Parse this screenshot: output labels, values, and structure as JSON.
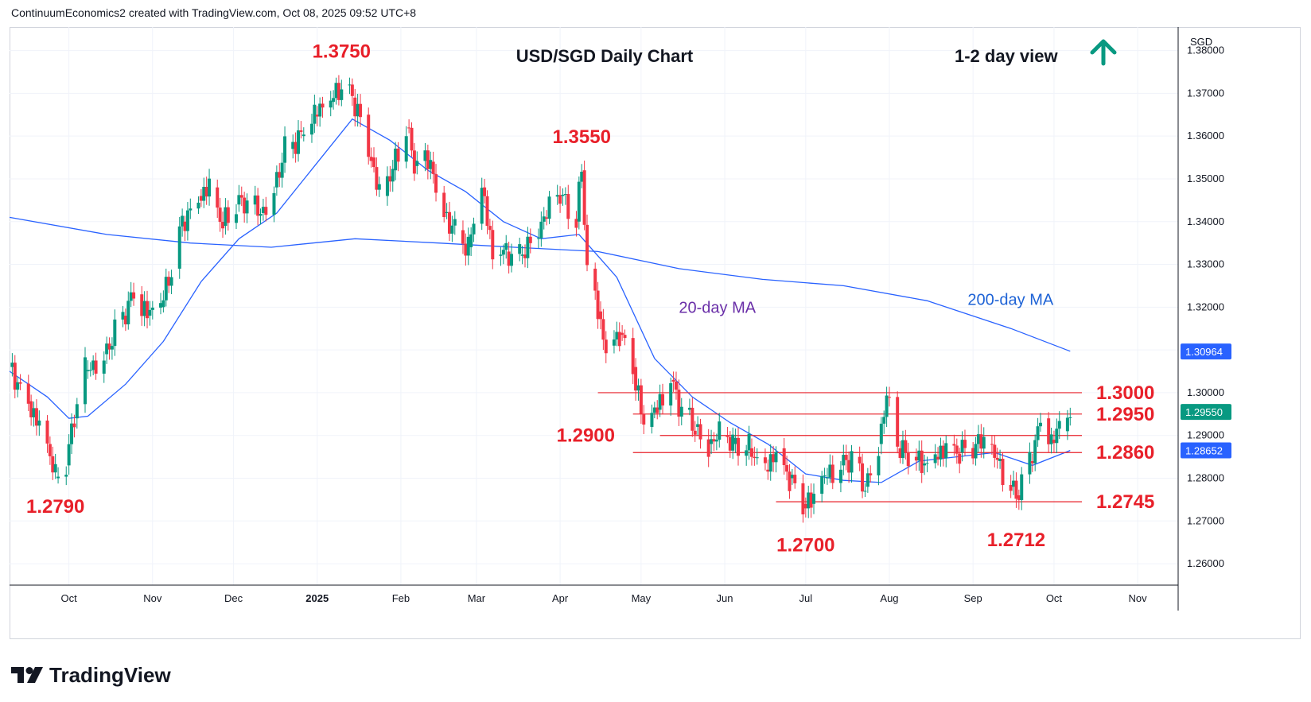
{
  "header": {
    "created_by": "ContinuumEconomics2 created with TradingView.com, Oct 08, 2025 09:52 UTC+8"
  },
  "brand": {
    "name": "TradingView"
  },
  "currency_label": "SGD",
  "colors": {
    "up": "#089981",
    "down": "#f23645",
    "ma20": "#2962ff",
    "ma200": "#2962ff",
    "level_line": "#e8202a",
    "level_text": "#e8202a",
    "arrow": "#089981",
    "ma20_label": "#6a2fa8",
    "ma200_label": "#1e63d6"
  },
  "chart_data": {
    "type": "candlestick",
    "title": "USD/SGD Daily Chart",
    "view_label": "1-2 day view",
    "view_direction": "up-arrow-icon",
    "ylim": [
      1.255,
      1.3855
    ],
    "y_ticks": [
      "1.38000",
      "1.37000",
      "1.36000",
      "1.35000",
      "1.34000",
      "1.33000",
      "1.32000",
      "1.31000",
      "1.30000",
      "1.29000",
      "1.28000",
      "1.27000",
      "1.26000"
    ],
    "x_ticks": [
      {
        "label": "Oct",
        "date": "2024-10-01",
        "bold": false
      },
      {
        "label": "Nov",
        "date": "2024-11-01",
        "bold": false
      },
      {
        "label": "Dec",
        "date": "2024-12-01",
        "bold": false
      },
      {
        "label": "2025",
        "date": "2025-01-01",
        "bold": true
      },
      {
        "label": "Feb",
        "date": "2025-02-01",
        "bold": false
      },
      {
        "label": "Mar",
        "date": "2025-03-01",
        "bold": false
      },
      {
        "label": "Apr",
        "date": "2025-04-01",
        "bold": false
      },
      {
        "label": "May",
        "date": "2025-05-01",
        "bold": false
      },
      {
        "label": "Jun",
        "date": "2025-06-01",
        "bold": false
      },
      {
        "label": "Jul",
        "date": "2025-07-01",
        "bold": false
      },
      {
        "label": "Aug",
        "date": "2025-08-01",
        "bold": false
      },
      {
        "label": "Sep",
        "date": "2025-09-01",
        "bold": false
      },
      {
        "label": "Oct",
        "date": "2025-10-01",
        "bold": false
      },
      {
        "label": "Nov",
        "date": "2025-11-01",
        "bold": false
      }
    ],
    "x_range": [
      "2024-09-09",
      "2025-11-16"
    ],
    "close_series": [
      [
        "2024-09-09",
        1.306
      ],
      [
        "2024-09-16",
        1.298
      ],
      [
        "2024-09-23",
        1.288
      ],
      [
        "2024-09-26",
        1.28
      ],
      [
        "2024-09-30",
        1.283
      ],
      [
        "2024-10-03",
        1.294
      ],
      [
        "2024-10-07",
        1.305
      ],
      [
        "2024-10-14",
        1.309
      ],
      [
        "2024-10-21",
        1.318
      ],
      [
        "2024-10-25",
        1.323
      ],
      [
        "2024-10-30",
        1.318
      ],
      [
        "2024-11-04",
        1.32
      ],
      [
        "2024-11-08",
        1.329
      ],
      [
        "2024-11-12",
        1.34
      ],
      [
        "2024-11-18",
        1.346
      ],
      [
        "2024-11-22",
        1.348
      ],
      [
        "2024-11-27",
        1.339
      ],
      [
        "2024-12-02",
        1.344
      ],
      [
        "2024-12-06",
        1.344
      ],
      [
        "2024-12-11",
        1.342
      ],
      [
        "2024-12-16",
        1.348
      ],
      [
        "2024-12-20",
        1.357
      ],
      [
        "2024-12-26",
        1.36
      ],
      [
        "2024-12-31",
        1.365
      ],
      [
        "2025-01-06",
        1.368
      ],
      [
        "2025-01-10",
        1.372
      ],
      [
        "2025-01-14",
        1.369
      ],
      [
        "2025-01-17",
        1.365
      ],
      [
        "2025-01-21",
        1.355
      ],
      [
        "2025-01-24",
        1.346
      ],
      [
        "2025-01-29",
        1.352
      ],
      [
        "2025-02-03",
        1.362
      ],
      [
        "2025-02-06",
        1.353
      ],
      [
        "2025-02-12",
        1.354
      ],
      [
        "2025-02-17",
        1.342
      ],
      [
        "2025-02-21",
        1.338
      ],
      [
        "2025-02-26",
        1.334
      ],
      [
        "2025-03-03",
        1.348
      ],
      [
        "2025-03-07",
        1.332
      ],
      [
        "2025-03-12",
        1.333
      ],
      [
        "2025-03-17",
        1.332
      ],
      [
        "2025-03-21",
        1.336
      ],
      [
        "2025-03-26",
        1.341
      ],
      [
        "2025-04-01",
        1.346
      ],
      [
        "2025-04-07",
        1.34
      ],
      [
        "2025-04-09",
        1.352
      ],
      [
        "2025-04-11",
        1.329
      ],
      [
        "2025-04-15",
        1.319
      ],
      [
        "2025-04-18",
        1.311
      ],
      [
        "2025-04-23",
        1.314
      ],
      [
        "2025-04-28",
        1.306
      ],
      [
        "2025-05-02",
        1.292
      ],
      [
        "2025-05-07",
        1.296
      ],
      [
        "2025-05-12",
        1.303
      ],
      [
        "2025-05-16",
        1.296
      ],
      [
        "2025-05-21",
        1.292
      ],
      [
        "2025-05-26",
        1.288
      ],
      [
        "2025-05-30",
        1.29
      ],
      [
        "2025-06-04",
        1.288
      ],
      [
        "2025-06-10",
        1.287
      ],
      [
        "2025-06-16",
        1.282
      ],
      [
        "2025-06-20",
        1.287
      ],
      [
        "2025-06-25",
        1.28
      ],
      [
        "2025-06-30",
        1.274
      ],
      [
        "2025-07-03",
        1.274
      ],
      [
        "2025-07-08",
        1.28
      ],
      [
        "2025-07-14",
        1.283
      ],
      [
        "2025-07-18",
        1.285
      ],
      [
        "2025-07-23",
        1.278
      ],
      [
        "2025-07-28",
        1.288
      ],
      [
        "2025-07-31",
        1.299
      ],
      [
        "2025-08-04",
        1.287
      ],
      [
        "2025-08-08",
        1.285
      ],
      [
        "2025-08-13",
        1.283
      ],
      [
        "2025-08-18",
        1.285
      ],
      [
        "2025-08-22",
        1.288
      ],
      [
        "2025-08-27",
        1.286
      ],
      [
        "2025-09-02",
        1.288
      ],
      [
        "2025-09-05",
        1.288
      ],
      [
        "2025-09-10",
        1.284
      ],
      [
        "2025-09-15",
        1.278
      ],
      [
        "2025-09-17",
        1.276
      ],
      [
        "2025-09-22",
        1.284
      ],
      [
        "2025-09-26",
        1.294
      ],
      [
        "2025-09-30",
        1.289
      ],
      [
        "2025-10-03",
        1.291
      ],
      [
        "2025-10-07",
        1.2955
      ]
    ],
    "ma20_series": [
      [
        "2024-09-09",
        1.305
      ],
      [
        "2024-09-23",
        1.299
      ],
      [
        "2024-10-01",
        1.294
      ],
      [
        "2024-10-08",
        1.2945
      ],
      [
        "2024-10-22",
        1.302
      ],
      [
        "2024-11-05",
        1.312
      ],
      [
        "2024-11-19",
        1.326
      ],
      [
        "2024-12-03",
        1.336
      ],
      [
        "2024-12-17",
        1.342
      ],
      [
        "2024-12-31",
        1.353
      ],
      [
        "2025-01-14",
        1.364
      ],
      [
        "2025-01-28",
        1.359
      ],
      [
        "2025-02-11",
        1.352
      ],
      [
        "2025-02-25",
        1.347
      ],
      [
        "2025-03-11",
        1.34
      ],
      [
        "2025-03-25",
        1.336
      ],
      [
        "2025-04-08",
        1.337
      ],
      [
        "2025-04-22",
        1.327
      ],
      [
        "2025-05-06",
        1.308
      ],
      [
        "2025-05-20",
        1.299
      ],
      [
        "2025-06-03",
        1.293
      ],
      [
        "2025-06-17",
        1.288
      ],
      [
        "2025-07-01",
        1.281
      ],
      [
        "2025-07-15",
        1.2795
      ],
      [
        "2025-07-29",
        1.279
      ],
      [
        "2025-08-12",
        1.284
      ],
      [
        "2025-08-26",
        1.285
      ],
      [
        "2025-09-09",
        1.286
      ],
      [
        "2025-09-23",
        1.283
      ],
      [
        "2025-10-07",
        1.2865
      ]
    ],
    "ma200_series": [
      [
        "2024-09-09",
        1.341
      ],
      [
        "2024-10-15",
        1.337
      ],
      [
        "2024-11-15",
        1.335
      ],
      [
        "2024-12-15",
        1.334
      ],
      [
        "2025-01-15",
        1.336
      ],
      [
        "2025-02-15",
        1.335
      ],
      [
        "2025-03-15",
        1.334
      ],
      [
        "2025-04-15",
        1.333
      ],
      [
        "2025-05-15",
        1.329
      ],
      [
        "2025-06-15",
        1.3265
      ],
      [
        "2025-07-15",
        1.325
      ],
      [
        "2025-08-15",
        1.3215
      ],
      [
        "2025-09-15",
        1.315
      ],
      [
        "2025-10-07",
        1.3097
      ]
    ],
    "levels": [
      {
        "value": 1.3,
        "label": "1.3000",
        "from": "2025-04-15"
      },
      {
        "value": 1.295,
        "label": "1.2950",
        "from": "2025-04-28"
      },
      {
        "value": 1.29,
        "label": "1.2900",
        "from": "2025-05-08"
      },
      {
        "value": 1.286,
        "label": "1.2860",
        "from": "2025-04-28"
      },
      {
        "value": 1.2745,
        "label": "1.2745",
        "from": "2025-06-20"
      }
    ],
    "annotations": [
      {
        "text": "1.3750",
        "date": "2025-01-10",
        "value": 1.375,
        "pos": "above"
      },
      {
        "text": "1.3550",
        "date": "2025-04-09",
        "value": 1.355,
        "pos": "above"
      },
      {
        "text": "1.2790",
        "date": "2024-09-26",
        "value": 1.279,
        "pos": "below"
      },
      {
        "text": "1.2700",
        "date": "2025-07-01",
        "value": 1.27,
        "pos": "below"
      },
      {
        "text": "1.2712",
        "date": "2025-09-17",
        "value": 1.2712,
        "pos": "below"
      },
      {
        "text": "1.3000",
        "level": 1.3,
        "pos": "level"
      },
      {
        "text": "1.2950",
        "level": 1.295,
        "pos": "level"
      },
      {
        "text": "1.2860",
        "level": 1.286,
        "pos": "level"
      },
      {
        "text": "1.2745",
        "level": 1.2745,
        "pos": "level"
      },
      {
        "text": "1.2900",
        "level": 1.29,
        "pos": "left"
      }
    ],
    "ma_labels": [
      {
        "text": "20-day MA",
        "date": "2025-05-15",
        "value": 1.32
      },
      {
        "text": "200-day MA",
        "date": "2025-08-30",
        "value": 1.3218
      }
    ],
    "price_labels": [
      {
        "text": "1.30964",
        "value": 1.30964,
        "bg": "#2962ff"
      },
      {
        "text": "1.29550",
        "value": 1.2955,
        "bg": "#089981"
      },
      {
        "text": "1.28652",
        "value": 1.28652,
        "bg": "#2962ff"
      }
    ]
  }
}
